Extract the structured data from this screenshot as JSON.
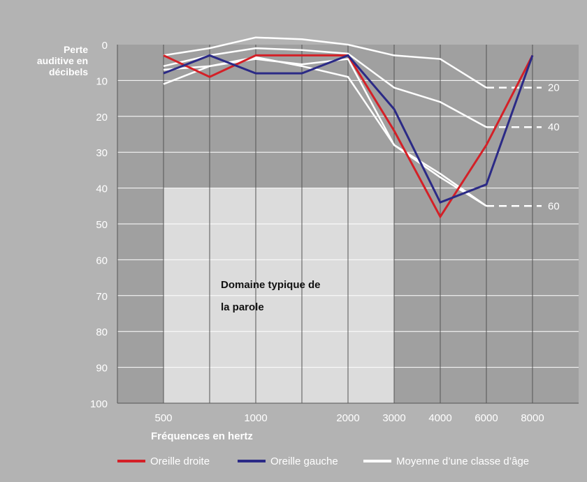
{
  "chart_data": {
    "type": "line",
    "ylabel_lines": [
      "Perte",
      "auditive en",
      "décibels"
    ],
    "xlabel": "Fréquences en hertz",
    "y_ticks": [
      0,
      10,
      20,
      30,
      40,
      50,
      60,
      70,
      80,
      90,
      100
    ],
    "ylim": [
      0,
      100
    ],
    "y_inverted": true,
    "x_positions": [
      "500",
      "750",
      "1000",
      "1500",
      "2000",
      "3000",
      "4000",
      "6000",
      "8000"
    ],
    "x_tick_labels": [
      {
        "label": "500",
        "at": "500"
      },
      {
        "label": "1000",
        "at": "1000"
      },
      {
        "label": "2000",
        "at": "2000"
      },
      {
        "label": "3000",
        "at": "3000"
      },
      {
        "label": "4000",
        "at": "4000"
      },
      {
        "label": "6000",
        "at": "6000"
      },
      {
        "label": "8000",
        "at": "8000"
      }
    ],
    "grid": true,
    "speech_region": {
      "text_lines": [
        "Domaine typique de",
        "la parole"
      ],
      "x_from": "500",
      "x_to": "3000",
      "y_from": 40,
      "y_to": 100
    },
    "series": [
      {
        "name": "Oreille droite",
        "color": "#d42027",
        "x": [
          "500",
          "750",
          "1000",
          "1500",
          "2000",
          "3000",
          "4000",
          "6000",
          "8000"
        ],
        "y": [
          3,
          9,
          3,
          3,
          3,
          24,
          48,
          28,
          3
        ]
      },
      {
        "name": "Oreille gauche",
        "color": "#2b2a86",
        "x": [
          "500",
          "750",
          "1000",
          "1500",
          "2000",
          "3000",
          "4000",
          "6000",
          "8000"
        ],
        "y": [
          8,
          3,
          8,
          8,
          3,
          18,
          44,
          39,
          3
        ]
      }
    ],
    "age_curves": {
      "name": "Moyenne d’une classe d’âge",
      "color": "#ffffff",
      "curves": [
        {
          "x": [
            "500",
            "750",
            "1000",
            "1500",
            "2000",
            "3000",
            "4000",
            "6000"
          ],
          "y": [
            3,
            1,
            -2,
            -1.5,
            0,
            3,
            4,
            12
          ],
          "label": "20",
          "label_y": 12
        },
        {
          "x": [
            "500",
            "750",
            "1000",
            "1500",
            "2000",
            "3000",
            "4000",
            "6000"
          ],
          "y": [
            6,
            3,
            1,
            1.5,
            2.5,
            12,
            16,
            23
          ],
          "label": "40",
          "label_y": 23
        },
        {
          "x": [
            "500",
            "750",
            "1000",
            "1500",
            "2000",
            "3000",
            "4000",
            "6000"
          ],
          "y": [
            7,
            6,
            4,
            5.5,
            4,
            28,
            37,
            45
          ],
          "label": "",
          "label_y": 45
        },
        {
          "x": [
            "500",
            "750",
            "1000",
            "1500",
            "2000",
            "3000",
            "4000",
            "6000"
          ],
          "y": [
            11,
            6,
            3.5,
            6,
            9,
            28,
            36,
            45
          ],
          "label": "60",
          "label_y": 45
        }
      ]
    },
    "legend": {
      "position": "bottom",
      "entries": [
        {
          "label": "Oreille droite",
          "color": "#d42027"
        },
        {
          "label": "Oreille gauche",
          "color": "#2b2a86"
        },
        {
          "label": "Moyenne d’une classe d’âge",
          "color": "#ffffff"
        }
      ]
    }
  }
}
